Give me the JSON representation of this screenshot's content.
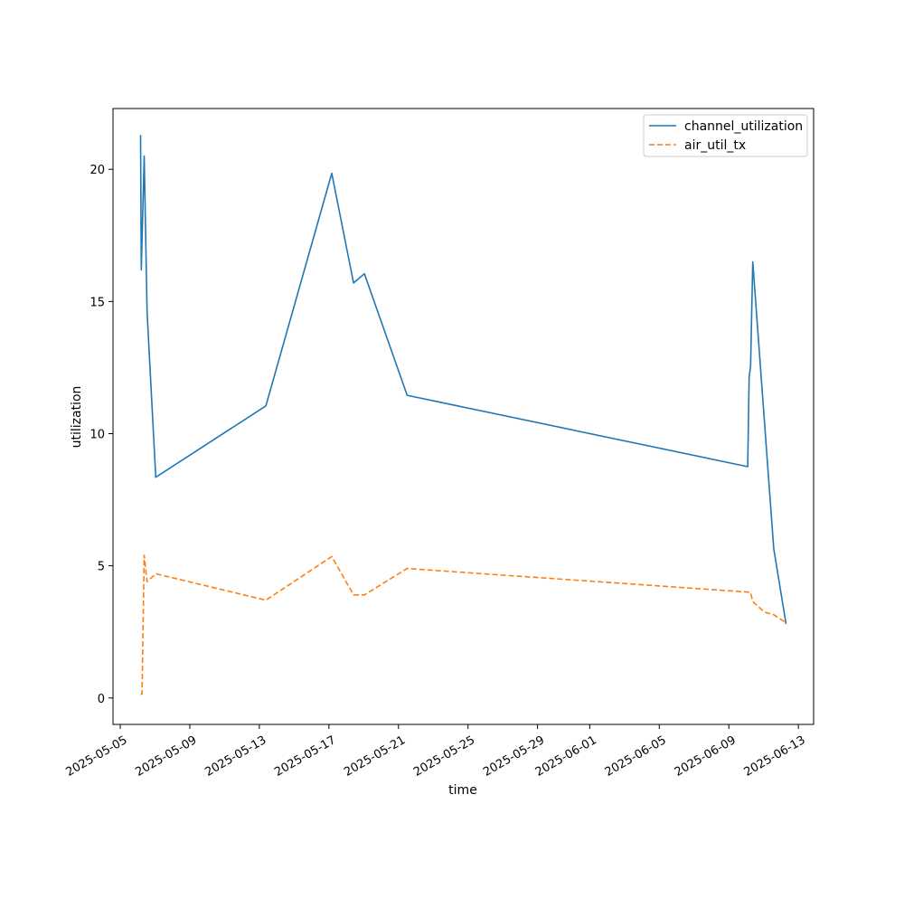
{
  "chart_data": {
    "type": "line",
    "title": "",
    "xlabel": "time",
    "ylabel": "utilization",
    "x_axis_type": "date",
    "xlim": [
      "2025-05-04T14:00",
      "2025-06-13T21:00"
    ],
    "ylim": [
      -1.0,
      22.3
    ],
    "grid": false,
    "legend": "top-right",
    "xticks": [
      "2025-05-05",
      "2025-05-09",
      "2025-05-13",
      "2025-05-17",
      "2025-05-21",
      "2025-05-25",
      "2025-05-29",
      "2025-06-01",
      "2025-06-05",
      "2025-06-09",
      "2025-06-13"
    ],
    "xtick_labels": [
      "2025-05-05",
      "2025-05-09",
      "2025-05-13",
      "2025-05-17",
      "2025-05-21",
      "2025-05-25",
      "2025-05-29",
      "2025-06-01",
      "2025-06-05",
      "2025-06-09",
      "2025-06-13"
    ],
    "yticks": [
      0,
      5,
      10,
      15,
      20
    ],
    "ytick_labels": [
      "0",
      "5",
      "10",
      "15",
      "20"
    ],
    "series": [
      {
        "name": "channel_utilization",
        "color": "#1f77b4",
        "style": "solid",
        "points": [
          [
            "2025-05-06T04:00",
            21.3
          ],
          [
            "2025-05-06T05:00",
            16.2
          ],
          [
            "2025-05-06T09:00",
            20.5
          ],
          [
            "2025-05-06T13:00",
            14.6
          ],
          [
            "2025-05-07T01:00",
            8.35
          ],
          [
            "2025-05-13T09:00",
            11.05
          ],
          [
            "2025-05-17T04:00",
            19.85
          ],
          [
            "2025-05-18T10:00",
            15.7
          ],
          [
            "2025-05-19T01:00",
            16.05
          ],
          [
            "2025-05-21T12:00",
            11.45
          ],
          [
            "2025-06-10T02:00",
            8.75
          ],
          [
            "2025-06-10T04:00",
            12.15
          ],
          [
            "2025-06-10T06:00",
            12.55
          ],
          [
            "2025-06-10T09:00",
            16.5
          ],
          [
            "2025-06-11T14:00",
            5.65
          ],
          [
            "2025-06-12T07:00",
            2.8
          ]
        ]
      },
      {
        "name": "air_util_tx",
        "color": "#ff7f0e",
        "style": "dashed",
        "points": [
          [
            "2025-05-06T04:00",
            0.15
          ],
          [
            "2025-05-06T06:00",
            0.15
          ],
          [
            "2025-05-06T09:00",
            5.4
          ],
          [
            "2025-05-06T13:00",
            4.4
          ],
          [
            "2025-05-07T01:00",
            4.7
          ],
          [
            "2025-05-13T09:00",
            3.7
          ],
          [
            "2025-05-17T04:00",
            5.35
          ],
          [
            "2025-05-18T10:00",
            3.9
          ],
          [
            "2025-05-19T01:00",
            3.9
          ],
          [
            "2025-05-21T12:00",
            4.9
          ],
          [
            "2025-06-10T06:00",
            4.0
          ],
          [
            "2025-06-10T09:00",
            3.65
          ],
          [
            "2025-06-11T01:00",
            3.25
          ],
          [
            "2025-06-11T14:00",
            3.15
          ],
          [
            "2025-06-12T07:00",
            2.85
          ]
        ]
      }
    ]
  }
}
